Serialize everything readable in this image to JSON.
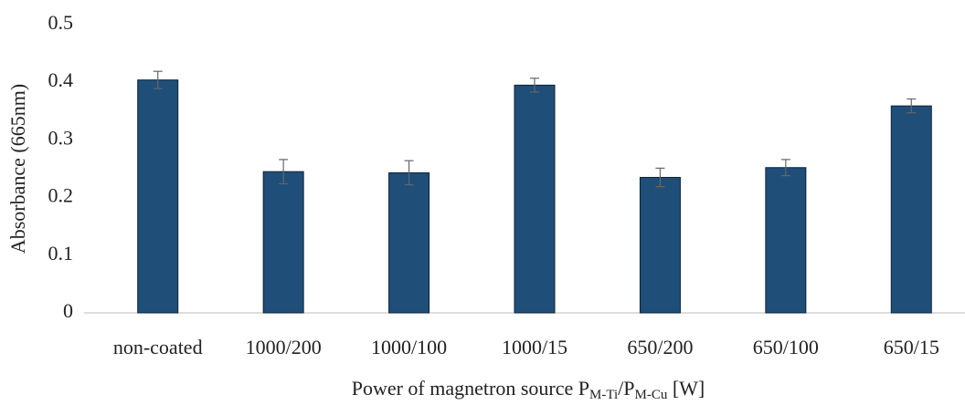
{
  "chart_data": {
    "type": "bar",
    "y_label": "Absorbance (665nm)",
    "x_label": [
      "Power of magnetron source P",
      "M-Ti",
      "/P",
      "M-Cu",
      " [W]"
    ],
    "categories": [
      "non-coated",
      "1000/200",
      "1000/100",
      "1000/15",
      "650/200",
      "650/100",
      "650/15"
    ],
    "values": [
      0.404,
      0.245,
      0.243,
      0.395,
      0.235,
      0.252,
      0.359
    ],
    "errors": [
      0.015,
      0.021,
      0.021,
      0.012,
      0.016,
      0.014,
      0.012
    ],
    "color": "#1f4e79",
    "error_color": "#666666",
    "ylim": [
      0,
      0.5
    ],
    "yticks": [
      0,
      0.1,
      0.2,
      0.3,
      0.4,
      0.5
    ],
    "grid": false
  }
}
